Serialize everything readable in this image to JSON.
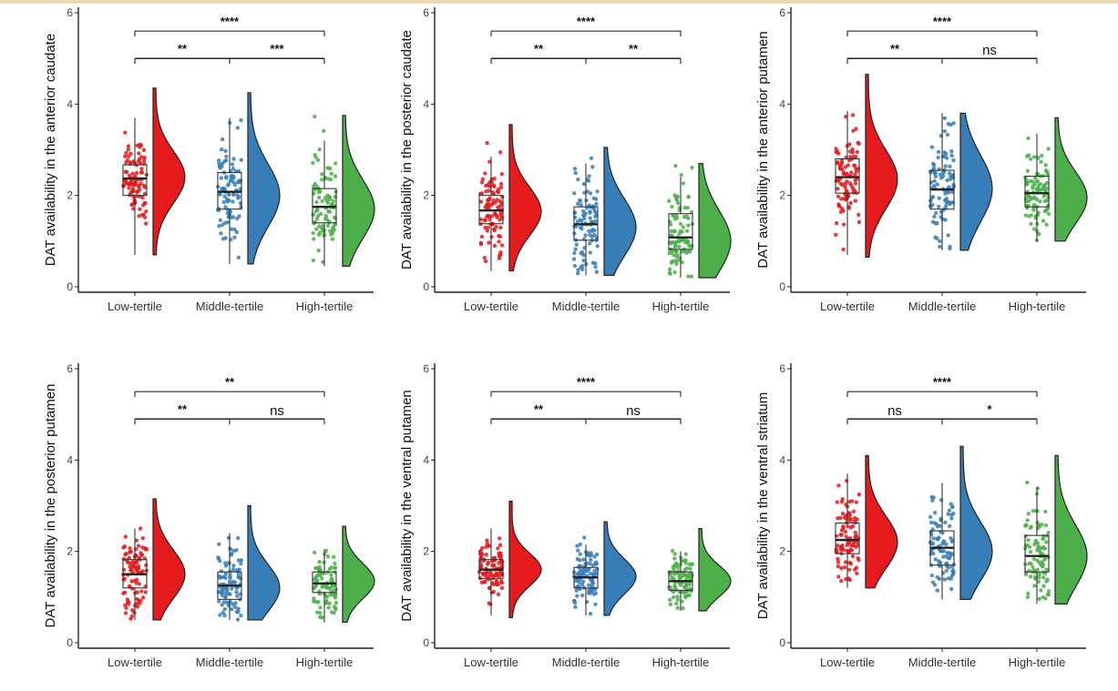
{
  "colors": {
    "low": "#e41a1c",
    "middle": "#377eb8",
    "high": "#4daf4a",
    "axis": "#222222",
    "box": "#333333"
  },
  "chart_data": [
    {
      "type": "raincloud",
      "ylabel": "DAT availability in the anterior caudate",
      "categories": [
        "Low-tertile",
        "Middle-tertile",
        "High-tertile"
      ],
      "yticks": [
        "0",
        "2",
        "4",
        "6"
      ],
      "ylim": [
        0,
        6
      ],
      "groups": [
        {
          "min": 0.7,
          "q1": 2.0,
          "median": 2.37,
          "q3": 2.67,
          "max": 3.7,
          "dmin": 0.7,
          "dmax": 4.35,
          "peak": 2.4,
          "color": "low"
        },
        {
          "min": 0.5,
          "q1": 1.7,
          "median": 2.08,
          "q3": 2.5,
          "max": 3.7,
          "dmin": 0.5,
          "dmax": 4.25,
          "peak": 2.0,
          "color": "middle"
        },
        {
          "min": 0.45,
          "q1": 1.4,
          "median": 1.75,
          "q3": 2.15,
          "max": 3.2,
          "dmin": 0.45,
          "dmax": 3.75,
          "peak": 1.7,
          "color": "high"
        }
      ],
      "comparisons": [
        {
          "from": 0,
          "to": 1,
          "label": "**",
          "y": 5.0
        },
        {
          "from": 1,
          "to": 2,
          "label": "***",
          "y": 5.0
        },
        {
          "from": 0,
          "to": 2,
          "label": "****",
          "y": 5.6
        }
      ]
    },
    {
      "type": "raincloud",
      "ylabel": "DAT availability in the posterior caudate",
      "categories": [
        "Low-tertile",
        "Middle-tertile",
        "High-tertile"
      ],
      "yticks": [
        "0",
        "2",
        "4",
        "6"
      ],
      "ylim": [
        0,
        6
      ],
      "groups": [
        {
          "min": 0.35,
          "q1": 1.38,
          "median": 1.67,
          "q3": 2.0,
          "max": 2.85,
          "dmin": 0.35,
          "dmax": 3.55,
          "peak": 1.65,
          "color": "low"
        },
        {
          "min": 0.25,
          "q1": 1.02,
          "median": 1.37,
          "q3": 1.75,
          "max": 2.7,
          "dmin": 0.25,
          "dmax": 3.05,
          "peak": 1.3,
          "color": "middle"
        },
        {
          "min": 0.2,
          "q1": 0.82,
          "median": 1.08,
          "q3": 1.6,
          "max": 2.4,
          "dmin": 0.2,
          "dmax": 2.7,
          "peak": 1.0,
          "color": "high"
        }
      ],
      "comparisons": [
        {
          "from": 0,
          "to": 1,
          "label": "**",
          "y": 5.0
        },
        {
          "from": 1,
          "to": 2,
          "label": "**",
          "y": 5.0
        },
        {
          "from": 0,
          "to": 2,
          "label": "****",
          "y": 5.6
        }
      ]
    },
    {
      "type": "raincloud",
      "ylabel": "DAT availability in the anterior putamen",
      "categories": [
        "Low-tertile",
        "Middle-tertile",
        "High-tertile"
      ],
      "yticks": [
        "0",
        "2",
        "4",
        "6"
      ],
      "ylim": [
        0,
        6
      ],
      "groups": [
        {
          "min": 0.7,
          "q1": 2.05,
          "median": 2.4,
          "q3": 2.8,
          "max": 3.85,
          "dmin": 0.65,
          "dmax": 4.65,
          "peak": 2.35,
          "color": "low"
        },
        {
          "min": 0.8,
          "q1": 1.7,
          "median": 2.13,
          "q3": 2.55,
          "max": 3.8,
          "dmin": 0.8,
          "dmax": 3.8,
          "peak": 2.15,
          "color": "middle"
        },
        {
          "min": 1.0,
          "q1": 1.75,
          "median": 2.05,
          "q3": 2.42,
          "max": 3.35,
          "dmin": 1.0,
          "dmax": 3.7,
          "peak": 1.95,
          "color": "high"
        }
      ],
      "comparisons": [
        {
          "from": 0,
          "to": 1,
          "label": "**",
          "y": 5.0
        },
        {
          "from": 1,
          "to": 2,
          "label": "ns",
          "y": 5.0
        },
        {
          "from": 0,
          "to": 2,
          "label": "****",
          "y": 5.6
        }
      ]
    },
    {
      "type": "raincloud",
      "ylabel": "DAT availability in the posterior putamen",
      "categories": [
        "Low-tertile",
        "Middle-tertile",
        "High-tertile"
      ],
      "yticks": [
        "0",
        "2",
        "4",
        "6"
      ],
      "ylim": [
        0,
        6
      ],
      "groups": [
        {
          "min": 0.5,
          "q1": 1.2,
          "median": 1.5,
          "q3": 1.82,
          "max": 2.5,
          "dmin": 0.5,
          "dmax": 3.15,
          "peak": 1.5,
          "color": "low"
        },
        {
          "min": 0.5,
          "q1": 0.95,
          "median": 1.25,
          "q3": 1.55,
          "max": 2.4,
          "dmin": 0.5,
          "dmax": 3.0,
          "peak": 1.2,
          "color": "middle"
        },
        {
          "min": 0.45,
          "q1": 1.1,
          "median": 1.3,
          "q3": 1.55,
          "max": 2.05,
          "dmin": 0.45,
          "dmax": 2.55,
          "peak": 1.35,
          "color": "high"
        }
      ],
      "comparisons": [
        {
          "from": 0,
          "to": 1,
          "label": "**",
          "y": 4.9
        },
        {
          "from": 1,
          "to": 2,
          "label": "ns",
          "y": 4.9
        },
        {
          "from": 0,
          "to": 2,
          "label": "**",
          "y": 5.5
        }
      ]
    },
    {
      "type": "raincloud",
      "ylabel": "DAT availability in the ventral putamen",
      "categories": [
        "Low-tertile",
        "Middle-tertile",
        "High-tertile"
      ],
      "yticks": [
        "0",
        "2",
        "4",
        "6"
      ],
      "ylim": [
        0,
        6
      ],
      "groups": [
        {
          "min": 0.6,
          "q1": 1.4,
          "median": 1.6,
          "q3": 1.82,
          "max": 2.5,
          "dmin": 0.55,
          "dmax": 3.1,
          "peak": 1.6,
          "color": "low"
        },
        {
          "min": 0.6,
          "q1": 1.2,
          "median": 1.43,
          "q3": 1.65,
          "max": 2.15,
          "dmin": 0.6,
          "dmax": 2.65,
          "peak": 1.45,
          "color": "middle"
        },
        {
          "min": 0.7,
          "q1": 1.15,
          "median": 1.35,
          "q3": 1.55,
          "max": 2.0,
          "dmin": 0.7,
          "dmax": 2.5,
          "peak": 1.35,
          "color": "high"
        }
      ],
      "comparisons": [
        {
          "from": 0,
          "to": 1,
          "label": "**",
          "y": 4.9
        },
        {
          "from": 1,
          "to": 2,
          "label": "ns",
          "y": 4.9
        },
        {
          "from": 0,
          "to": 2,
          "label": "****",
          "y": 5.5
        }
      ]
    },
    {
      "type": "raincloud",
      "ylabel": "DAT availability in the ventral striatum",
      "categories": [
        "Low-tertile",
        "Middle-tertile",
        "High-tertile"
      ],
      "yticks": [
        "0",
        "2",
        "4",
        "6"
      ],
      "ylim": [
        0,
        6
      ],
      "groups": [
        {
          "min": 1.2,
          "q1": 1.95,
          "median": 2.25,
          "q3": 2.62,
          "max": 3.7,
          "dmin": 1.2,
          "dmax": 4.1,
          "peak": 2.2,
          "color": "low"
        },
        {
          "min": 0.95,
          "q1": 1.7,
          "median": 2.08,
          "q3": 2.45,
          "max": 3.5,
          "dmin": 0.95,
          "dmax": 4.3,
          "peak": 2.0,
          "color": "middle"
        },
        {
          "min": 0.85,
          "q1": 1.55,
          "median": 1.9,
          "q3": 2.35,
          "max": 3.4,
          "dmin": 0.85,
          "dmax": 4.1,
          "peak": 1.9,
          "color": "high"
        }
      ],
      "comparisons": [
        {
          "from": 0,
          "to": 1,
          "label": "ns",
          "y": 4.9
        },
        {
          "from": 1,
          "to": 2,
          "label": "*",
          "y": 4.9
        },
        {
          "from": 0,
          "to": 2,
          "label": "****",
          "y": 5.5
        }
      ]
    }
  ]
}
